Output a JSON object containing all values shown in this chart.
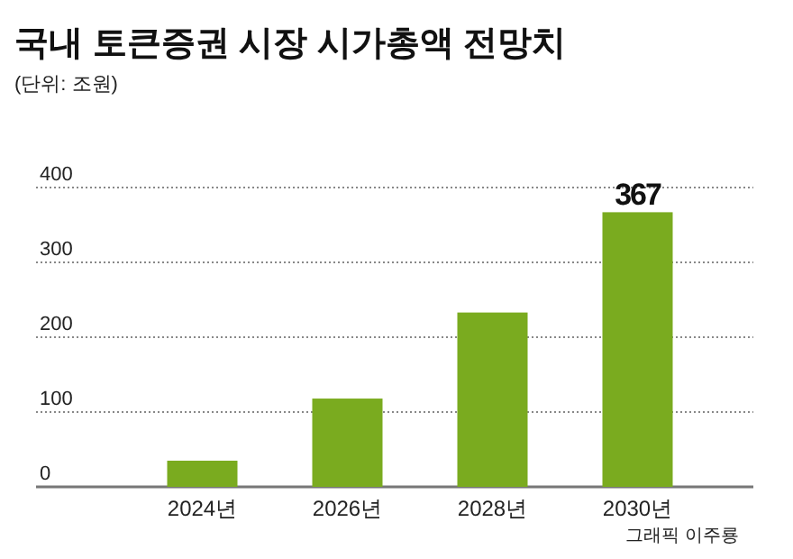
{
  "chart_data": {
    "type": "bar",
    "title": "국내 토큰증권 시장 시가총액 전망치",
    "subtitle": "(단위: 조원)",
    "categories": [
      "2024년",
      "2026년",
      "2028년",
      "2030년"
    ],
    "values": [
      35,
      118,
      233,
      367
    ],
    "value_labels": [
      null,
      null,
      null,
      "367"
    ],
    "color": "#7aab1f",
    "ylim": [
      0,
      400
    ],
    "yticks": [
      0,
      100,
      200,
      300,
      400
    ],
    "grid": "y",
    "annotations": [
      "그래픽 이주룡"
    ]
  }
}
